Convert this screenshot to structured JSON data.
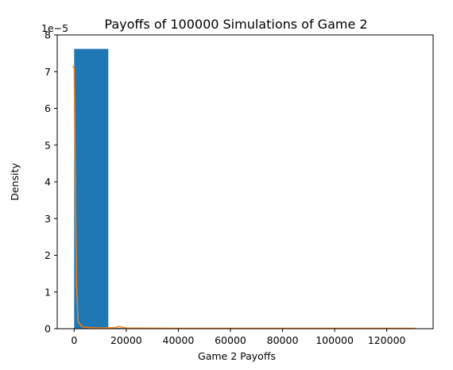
{
  "chart_data": {
    "type": "bar",
    "title": "Payoffs of 100000 Simulations of Game 2",
    "xlabel": "Game 2 Payoffs",
    "ylabel": "Density",
    "y_multiplier_label": "1e−5",
    "xlim": [
      -6500,
      137800
    ],
    "ylim": [
      0,
      8
    ],
    "x_ticks": [
      0,
      20000,
      40000,
      60000,
      80000,
      100000,
      120000
    ],
    "x_tick_labels": [
      "0",
      "20000",
      "40000",
      "60000",
      "80000",
      "100000",
      "120000"
    ],
    "y_ticks": [
      0,
      1,
      2,
      3,
      4,
      5,
      6,
      7,
      8
    ],
    "y_tick_labels": [
      "0",
      "1",
      "2",
      "3",
      "4",
      "5",
      "6",
      "7",
      "8"
    ],
    "bars": [
      {
        "x0": 0,
        "x1": 13100,
        "value": 7.62
      },
      {
        "x0": 13100,
        "x1": 26200,
        "value": 0.02
      },
      {
        "x0": 26200,
        "x1": 39300,
        "value": 0.01
      },
      {
        "x0": 39300,
        "x1": 52400,
        "value": 0.005
      },
      {
        "x0": 52400,
        "x1": 65500,
        "value": 0.004
      },
      {
        "x0": 65500,
        "x1": 78600,
        "value": 0.003
      },
      {
        "x0": 78600,
        "x1": 91700,
        "value": 0.003
      },
      {
        "x0": 91700,
        "x1": 104800,
        "value": 0.002
      },
      {
        "x0": 104800,
        "x1": 117900,
        "value": 0.002
      },
      {
        "x0": 117900,
        "x1": 131000,
        "value": 0.002
      }
    ],
    "density_curve": {
      "x": [
        -500,
        0,
        200,
        500,
        900,
        1500,
        3000,
        6000,
        10000,
        16000,
        17000,
        20000,
        40000,
        60000,
        80000,
        100000,
        120000,
        131000
      ],
      "y": [
        7.15,
        7.1,
        6.0,
        3.5,
        1.2,
        0.2,
        0.05,
        0.03,
        0.02,
        0.03,
        0.06,
        0.02,
        0.01,
        0.01,
        0.01,
        0.01,
        0.01,
        0.01
      ]
    },
    "colors": {
      "bar": "#1f77b4",
      "curve": "#ff7f0e"
    }
  }
}
